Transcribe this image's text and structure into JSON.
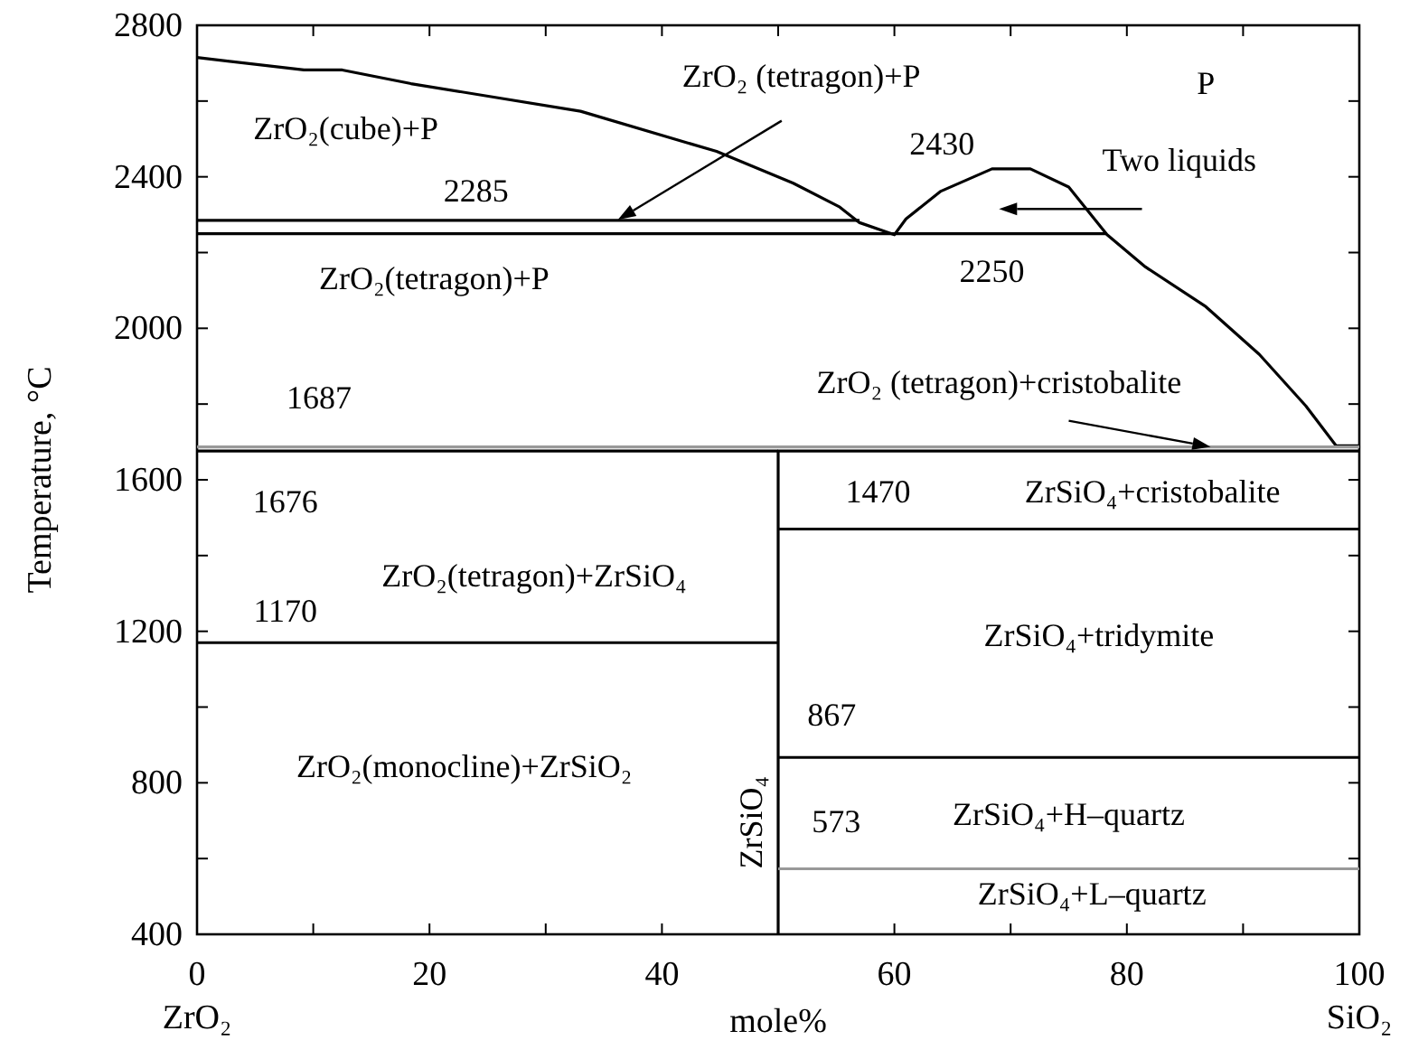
{
  "chart_data": {
    "type": "line",
    "xlabel": "mole%",
    "ylabel": "Temperature, °C",
    "xlim": [
      0,
      100
    ],
    "ylim": [
      400,
      2800
    ],
    "xticks": [
      {
        "value": 0,
        "label": "0\nZrO₂"
      },
      {
        "value": 10,
        "label": null
      },
      20,
      {
        "value": 30,
        "label": null
      },
      40,
      {
        "value": 50,
        "label": null
      },
      60,
      {
        "value": 70,
        "label": null
      },
      80,
      {
        "value": 90,
        "label": null
      },
      {
        "value": 100,
        "label": "100\nSiO₂"
      }
    ],
    "yticks": [
      400,
      {
        "value": 600,
        "label": null
      },
      800,
      {
        "value": 1000,
        "label": null
      },
      1200,
      {
        "value": 1400,
        "label": null
      },
      1600,
      {
        "value": 1800,
        "label": null
      },
      2000,
      {
        "value": 2200,
        "label": null
      },
      2400,
      {
        "value": 2600,
        "label": null
      },
      2800
    ],
    "grid": false,
    "marker": "none",
    "line_style": "solid",
    "series": [
      {
        "color": "#000000",
        "x": [
          0,
          9.2,
          12.5,
          18.4,
          33,
          44.7,
          51.3,
          55.3,
          57,
          60,
          61,
          64,
          68.4,
          71.7,
          75,
          78.3,
          81.6,
          86.8,
          91.4,
          95.4,
          98,
          100
        ],
        "values": [
          2715,
          2682,
          2682,
          2646,
          2573,
          2467,
          2383,
          2320,
          2279,
          2247,
          2289,
          2362,
          2421,
          2421,
          2373,
          2247,
          2162,
          2057,
          1931,
          1795,
          1690,
          1690
        ]
      },
      {
        "color": "#000000",
        "x": [
          0,
          57
        ],
        "values": [
          2285,
          2285
        ]
      },
      {
        "color": "#000000",
        "x": [
          0,
          78.3
        ],
        "values": [
          2250,
          2250
        ]
      },
      {
        "color": "#999999",
        "x": [
          0,
          100
        ],
        "values": [
          1687,
          1687
        ]
      },
      {
        "color": "#000000",
        "x": [
          0,
          50
        ],
        "values": [
          1676,
          1676
        ]
      },
      {
        "color": "#000000",
        "x": [
          50,
          50,
          100
        ],
        "values": [
          400,
          1676,
          1676
        ]
      },
      {
        "color": "#000000",
        "x": [
          50,
          100
        ],
        "values": [
          1470,
          1470
        ]
      },
      {
        "color": "#000000",
        "x": [
          0,
          50
        ],
        "values": [
          1170,
          1170
        ]
      },
      {
        "color": "#000000",
        "x": [
          50,
          100
        ],
        "values": [
          867,
          867
        ]
      },
      {
        "color": "#999999",
        "x": [
          50,
          100
        ],
        "values": [
          573,
          573
        ]
      }
    ],
    "annotations": [
      "ZrO₂(cube)+P",
      "ZrO₂ (tetragon)+P",
      "P",
      "2430",
      "Two liquids",
      "2285",
      "2250",
      "ZrO₂(tetragon)+P",
      "1687",
      {
        "text": "ZrO₂ (tetragon)+cristobalite",
        "x": 87.2,
        "y": 1687
      },
      "1676",
      "1470",
      "ZrSiO₄+cristobalite",
      "ZrO₂(tetragon)+ZrSiO₄",
      "1170",
      "ZrSiO₄+tridymite",
      "867",
      "ZrO₂(monocline)+ZrSiO₂",
      "ZrSiO₄",
      "573",
      "ZrSiO₄+H–quartz",
      "ZrSiO₄+L–quartz"
    ]
  }
}
